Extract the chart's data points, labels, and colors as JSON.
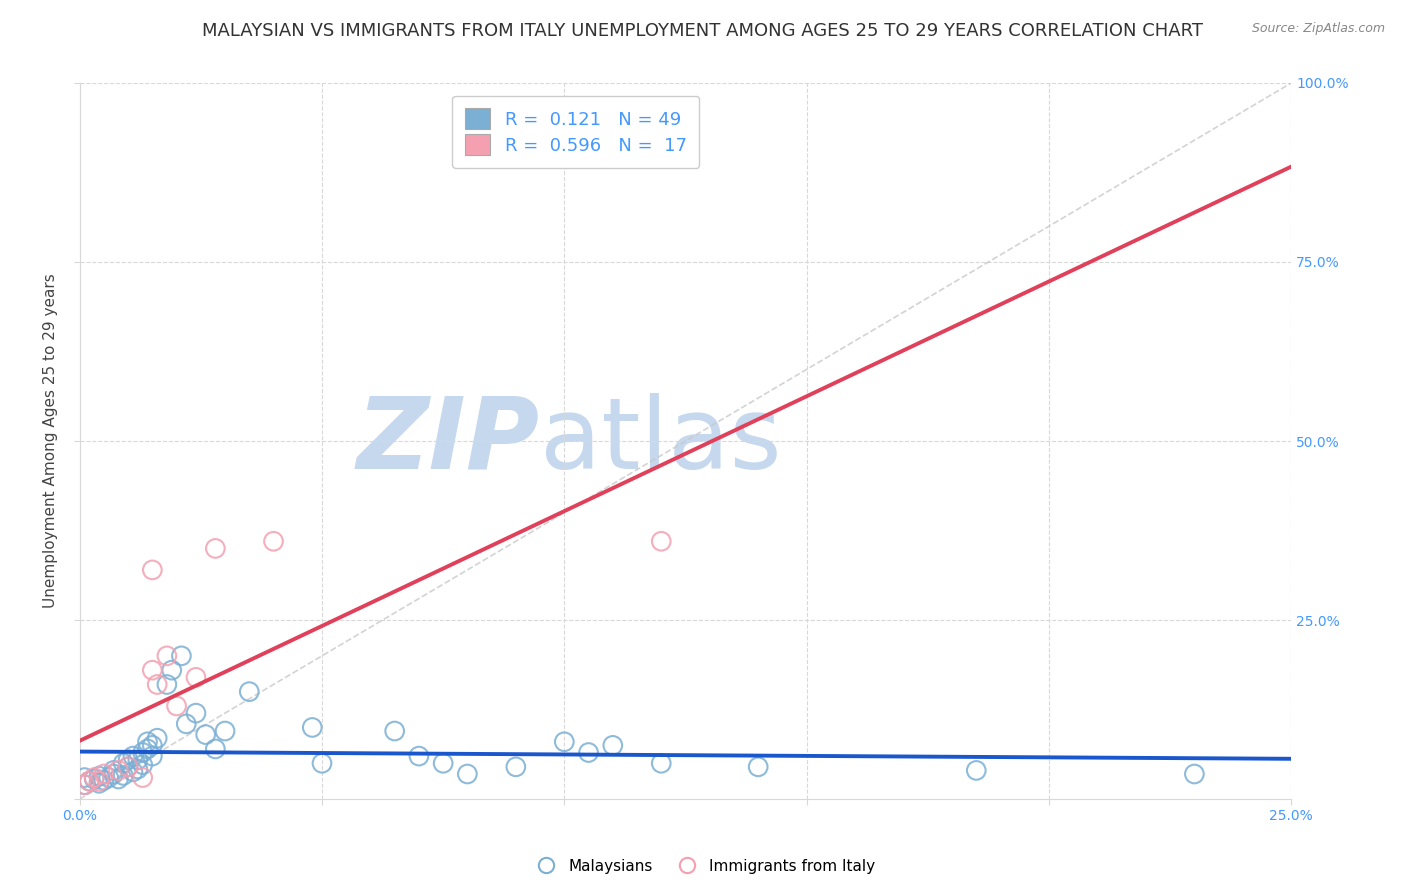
{
  "title": "MALAYSIAN VS IMMIGRANTS FROM ITALY UNEMPLOYMENT AMONG AGES 25 TO 29 YEARS CORRELATION CHART",
  "source": "Source: ZipAtlas.com",
  "xlabel": "",
  "ylabel": "Unemployment Among Ages 25 to 29 years",
  "xlim": [
    0.0,
    0.25
  ],
  "ylim": [
    0.0,
    1.0
  ],
  "malaysians_x": [
    0.001,
    0.001,
    0.002,
    0.003,
    0.004,
    0.004,
    0.005,
    0.006,
    0.007,
    0.007,
    0.008,
    0.009,
    0.009,
    0.01,
    0.01,
    0.011,
    0.011,
    0.012,
    0.012,
    0.013,
    0.013,
    0.014,
    0.014,
    0.015,
    0.015,
    0.016,
    0.018,
    0.019,
    0.021,
    0.022,
    0.024,
    0.026,
    0.028,
    0.03,
    0.035,
    0.048,
    0.05,
    0.065,
    0.07,
    0.075,
    0.08,
    0.09,
    0.1,
    0.105,
    0.11,
    0.12,
    0.14,
    0.185,
    0.23
  ],
  "malaysians_y": [
    0.02,
    0.03,
    0.025,
    0.028,
    0.022,
    0.032,
    0.026,
    0.03,
    0.035,
    0.04,
    0.028,
    0.033,
    0.05,
    0.045,
    0.055,
    0.038,
    0.06,
    0.042,
    0.055,
    0.048,
    0.065,
    0.07,
    0.08,
    0.06,
    0.075,
    0.085,
    0.16,
    0.18,
    0.2,
    0.105,
    0.12,
    0.09,
    0.07,
    0.095,
    0.15,
    0.1,
    0.05,
    0.095,
    0.06,
    0.05,
    0.035,
    0.045,
    0.08,
    0.065,
    0.075,
    0.05,
    0.045,
    0.04,
    0.035
  ],
  "italy_x": [
    0.001,
    0.002,
    0.003,
    0.004,
    0.005,
    0.008,
    0.01,
    0.013,
    0.015,
    0.015,
    0.016,
    0.018,
    0.02,
    0.024,
    0.028,
    0.04,
    0.12
  ],
  "italy_y": [
    0.02,
    0.025,
    0.03,
    0.025,
    0.035,
    0.04,
    0.045,
    0.03,
    0.32,
    0.18,
    0.16,
    0.2,
    0.13,
    0.17,
    0.35,
    0.36,
    0.36
  ],
  "blue_color": "#7bafd4",
  "pink_color": "#f4a0b0",
  "blue_line_color": "#1a56cc",
  "pink_line_color": "#e0405a",
  "diag_color": "#c8c8c8",
  "r_malaysian": "0.121",
  "n_malaysian": "49",
  "r_italy": "0.596",
  "n_italy": "17",
  "background_color": "#ffffff",
  "grid_color": "#d8d8d8",
  "title_fontsize": 13,
  "axis_label_fontsize": 11,
  "tick_fontsize": 10,
  "watermark_zip_color": "#c5d8ee",
  "watermark_atlas_color": "#c5d8ee",
  "right_axis_color": "#4499ff",
  "bottom_axis_color": "#4499ff"
}
